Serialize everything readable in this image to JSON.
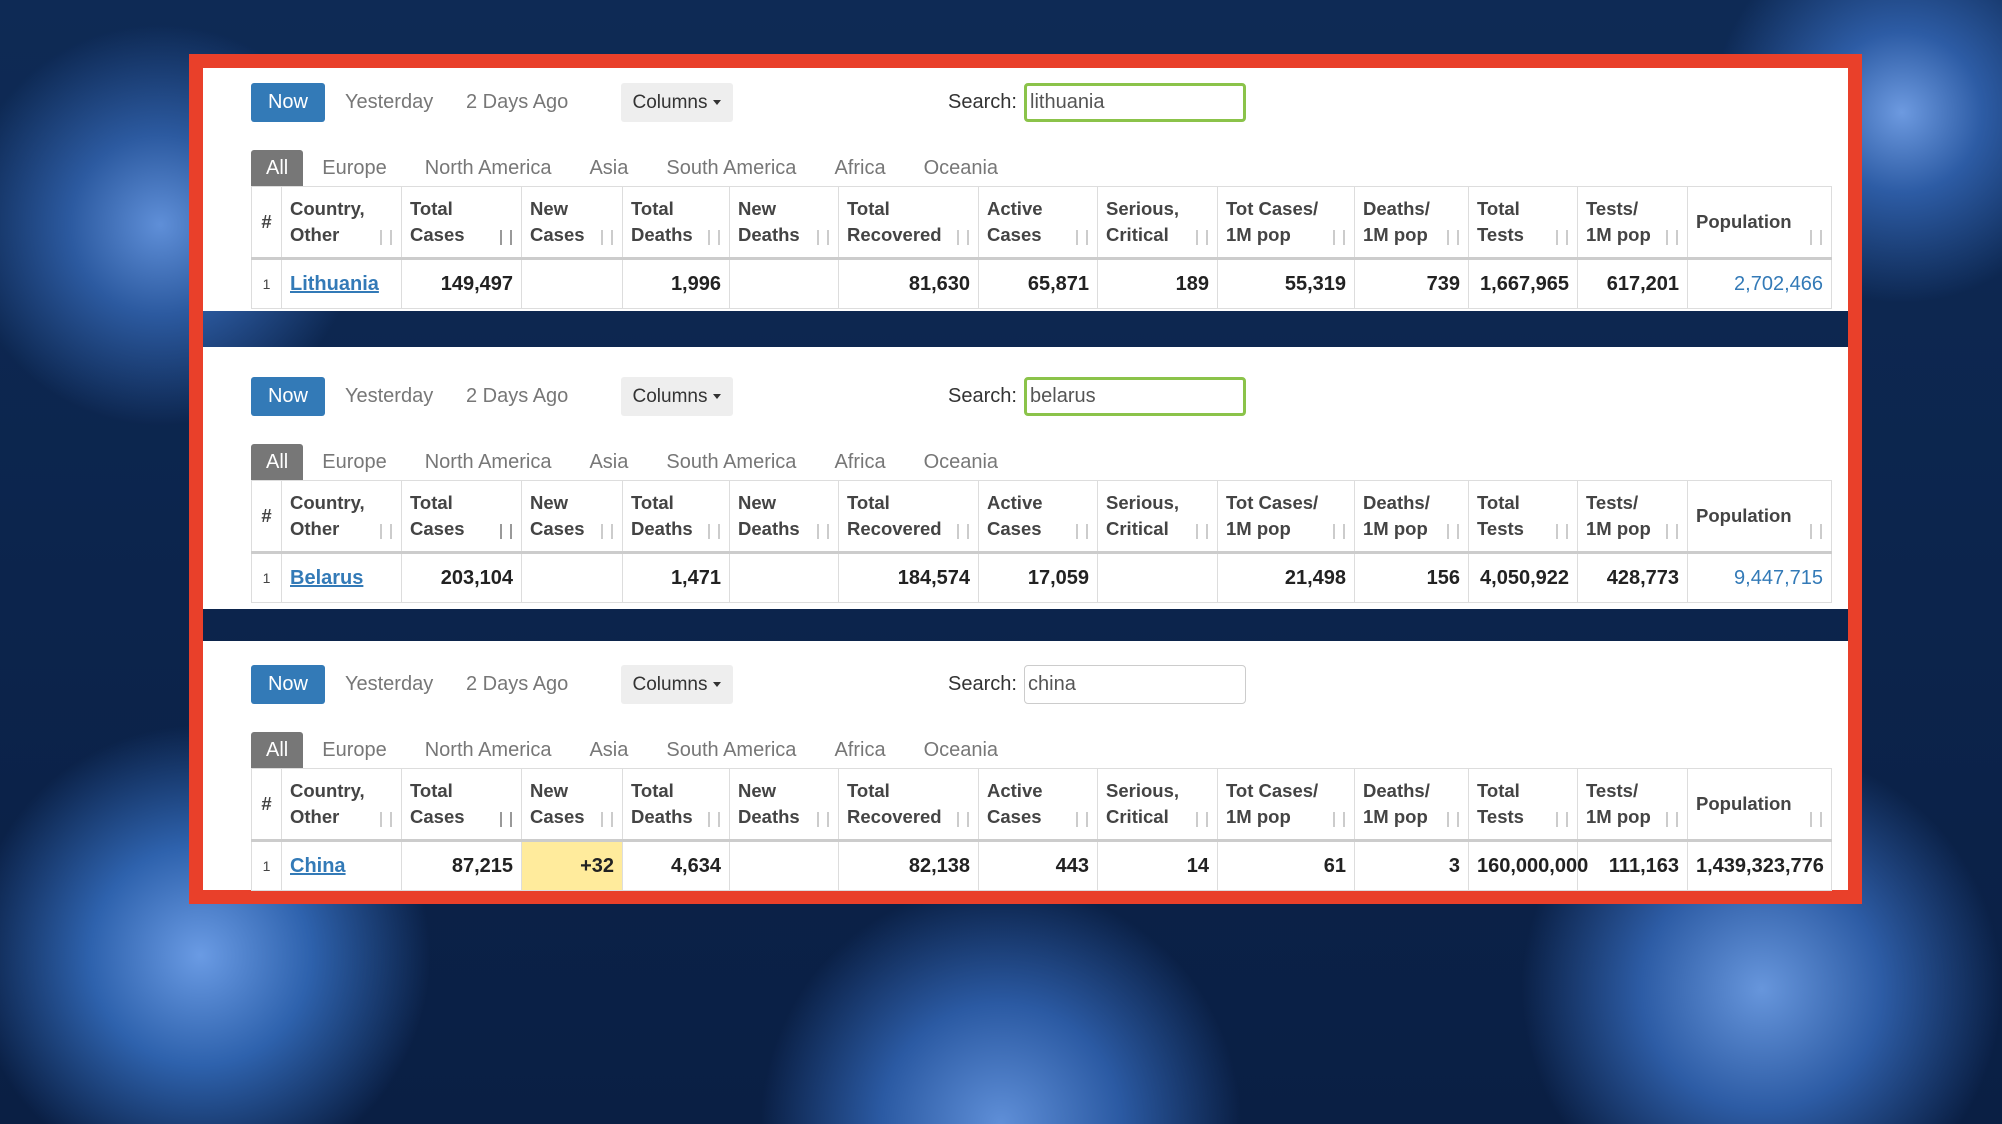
{
  "panels": [
    {
      "toolbar": {
        "now": "Now",
        "yesterday": "Yesterday",
        "two_days_ago": "2 Days Ago",
        "columns": "Columns",
        "search_label": "Search:",
        "search_value": "lithuania"
      },
      "tabs": [
        "All",
        "Europe",
        "North America",
        "Asia",
        "South America",
        "Africa",
        "Oceania"
      ],
      "columns": [
        "#",
        "Country,\nOther",
        "Total\nCases",
        "New\nCases",
        "Total\nDeaths",
        "New\nDeaths",
        "Total\nRecovered",
        "Active\nCases",
        "Serious,\nCritical",
        "Tot Cases/\n1M pop",
        "Deaths/\n1M pop",
        "Total\nTests",
        "Tests/\n1M pop",
        "Population"
      ],
      "row": [
        "1",
        "Lithuania",
        "149,497",
        null,
        "1,996",
        null,
        "81,630",
        "65,871",
        "189",
        "55,319",
        "739",
        "1,667,965",
        "617,201",
        "2,702,466"
      ]
    },
    {
      "toolbar": {
        "now": "Now",
        "yesterday": "Yesterday",
        "two_days_ago": "2 Days Ago",
        "columns": "Columns",
        "search_label": "Search:",
        "search_value": "belarus"
      },
      "tabs": [
        "All",
        "Europe",
        "North America",
        "Asia",
        "South America",
        "Africa",
        "Oceania"
      ],
      "columns": [
        "#",
        "Country,\nOther",
        "Total\nCases",
        "New\nCases",
        "Total\nDeaths",
        "New\nDeaths",
        "Total\nRecovered",
        "Active\nCases",
        "Serious,\nCritical",
        "Tot Cases/\n1M pop",
        "Deaths/\n1M pop",
        "Total\nTests",
        "Tests/\n1M pop",
        "Population"
      ],
      "row": [
        "1",
        "Belarus",
        "203,104",
        null,
        "1,471",
        null,
        "184,574",
        "17,059",
        null,
        "21,498",
        "156",
        "4,050,922",
        "428,773",
        "9,447,715"
      ]
    },
    {
      "toolbar": {
        "now": "Now",
        "yesterday": "Yesterday",
        "two_days_ago": "2 Days Ago",
        "columns": "Columns",
        "search_label": "Search:",
        "search_value": "china"
      },
      "tabs": [
        "All",
        "Europe",
        "North America",
        "Asia",
        "South America",
        "Africa",
        "Oceania"
      ],
      "columns": [
        "#",
        "Country,\nOther",
        "Total\nCases",
        "New\nCases",
        "Total\nDeaths",
        "New\nDeaths",
        "Total\nRecovered",
        "Active\nCases",
        "Serious,\nCritical",
        "Tot Cases/\n1M pop",
        "Deaths/\n1M pop",
        "Total\nTests",
        "Tests/\n1M pop",
        "Population"
      ],
      "row": [
        "1",
        "China",
        "87,215",
        "+32",
        "4,634",
        null,
        "82,138",
        "443",
        "14",
        "61",
        "3",
        "160,000,000",
        "111,163",
        "1,439,323,776"
      ]
    }
  ]
}
